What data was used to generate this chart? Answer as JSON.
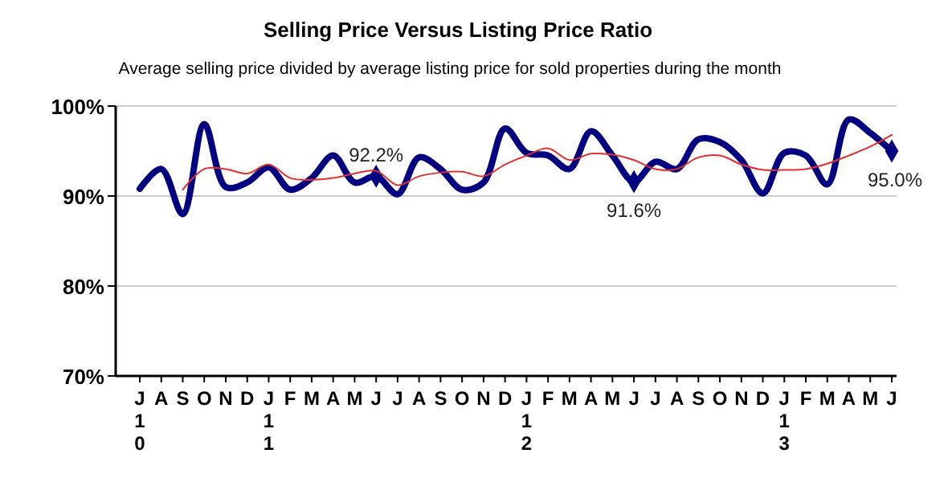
{
  "chart_data": {
    "type": "line",
    "title": "Selling Price Versus Listing Price Ratio",
    "subtitle": "Average selling price divided by average listing price for sold properties during the month",
    "categories": [
      "J\n1\n0",
      "A",
      "S",
      "O",
      "N",
      "D",
      "J\n1\n1",
      "F",
      "M",
      "A",
      "M",
      "J",
      "J",
      "A",
      "S",
      "O",
      "N",
      "D",
      "J\n1\n2",
      "F",
      "M",
      "A",
      "M",
      "J",
      "J",
      "A",
      "S",
      "O",
      "N",
      "D",
      "J\n1\n3",
      "F",
      "M",
      "A",
      "M",
      "J"
    ],
    "series": [
      {
        "color": "#000080",
        "values": [
          90.8,
          93,
          88,
          98,
          91,
          91.5,
          93.2,
          90.7,
          92,
          94.5,
          91.5,
          92.2,
          90.2,
          94.3,
          93,
          90.7,
          91.5,
          97.5,
          94.8,
          94.5,
          93,
          97.2,
          94.5,
          91.6,
          93.8,
          93,
          96.3,
          96,
          94,
          90.3,
          94.8,
          94.5,
          91.3,
          98.5,
          97,
          95.0
        ],
        "value_labels": [
          null,
          null,
          null,
          null,
          null,
          null,
          null,
          null,
          null,
          null,
          null,
          "92.2%",
          null,
          null,
          null,
          null,
          null,
          null,
          null,
          null,
          null,
          null,
          null,
          "91.6%",
          null,
          null,
          null,
          null,
          null,
          null,
          null,
          null,
          null,
          null,
          null,
          "95.0%"
        ]
      },
      {
        "color": "#e03030",
        "values": [
          null,
          null,
          90.7,
          93,
          93,
          92.5,
          93.5,
          92,
          91.8,
          92,
          92.5,
          92.8,
          91.2,
          92.2,
          92.6,
          92.7,
          92.2,
          93.5,
          94.5,
          95.3,
          94,
          94.7,
          94.6,
          94,
          93,
          93,
          94.3,
          94.5,
          93.5,
          92.9,
          92.9,
          93,
          93.6,
          94.5,
          95.5,
          96.8
        ]
      }
    ],
    "ylim": [
      70,
      100
    ],
    "yticks": [
      {
        "value": 70,
        "label": "70%"
      },
      {
        "value": 80,
        "label": "80%"
      },
      {
        "value": 90,
        "label": "90%"
      },
      {
        "value": 100,
        "label": "100%"
      }
    ],
    "grid": "y",
    "line_style": "solid"
  }
}
